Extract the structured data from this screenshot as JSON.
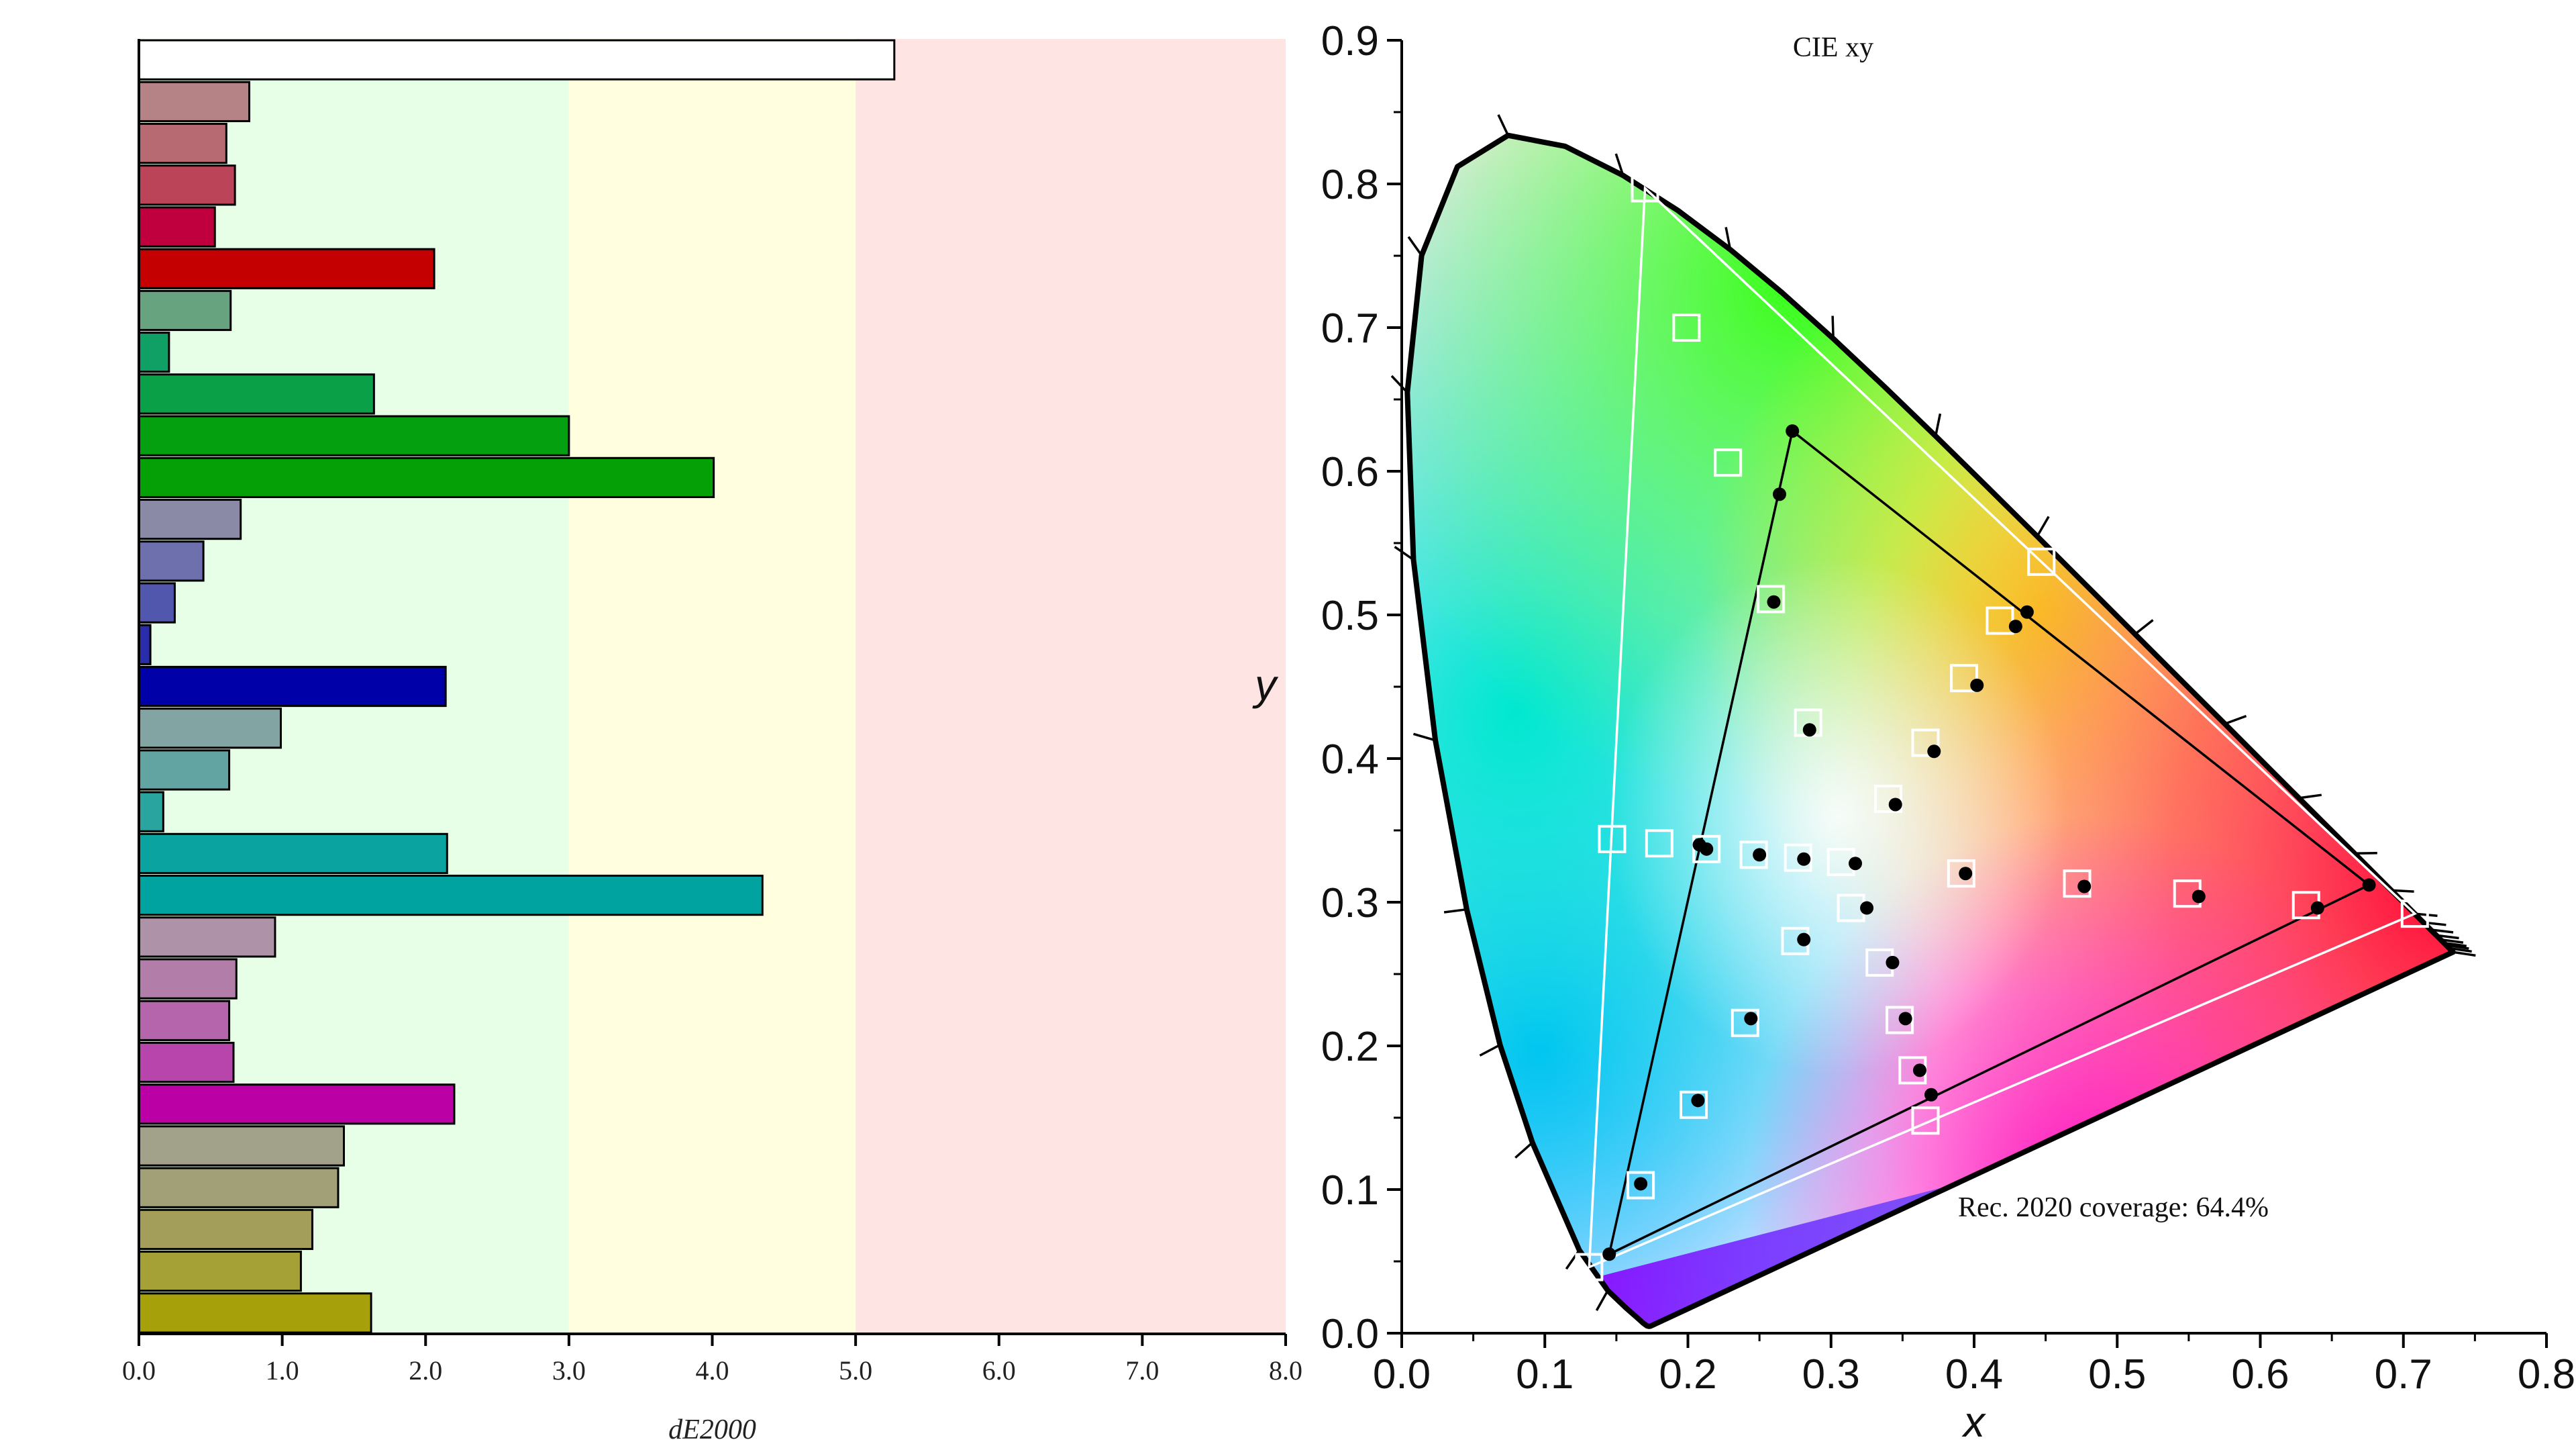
{
  "chart_data": [
    {
      "type": "bar",
      "orientation": "horizontal",
      "xlabel": "dE2000",
      "xlim": [
        0,
        8
      ],
      "xticks": [
        "0.0",
        "1.0",
        "2.0",
        "3.0",
        "4.0",
        "5.0",
        "6.0",
        "7.0",
        "8.0"
      ],
      "threshold_bands": [
        {
          "from": 0,
          "to": 3,
          "color": "#e6ffe6"
        },
        {
          "from": 3,
          "to": 5,
          "color": "#ffffe0"
        },
        {
          "from": 5,
          "to": 8,
          "color": "#ffe4e4"
        }
      ],
      "bars": [
        {
          "value": 5.27,
          "color": "#ffffff"
        },
        {
          "value": 0.77,
          "color": "#b58385"
        },
        {
          "value": 0.61,
          "color": "#b86a72"
        },
        {
          "value": 0.67,
          "color": "#bb4459"
        },
        {
          "value": 0.53,
          "color": "#c0003e"
        },
        {
          "value": 2.06,
          "color": "#c40000"
        },
        {
          "value": 0.64,
          "color": "#66a37e"
        },
        {
          "value": 0.21,
          "color": "#10a066"
        },
        {
          "value": 1.64,
          "color": "#0aa048"
        },
        {
          "value": 3.0,
          "color": "#05a010"
        },
        {
          "value": 4.01,
          "color": "#05a005"
        },
        {
          "value": 0.71,
          "color": "#8a8aa6"
        },
        {
          "value": 0.45,
          "color": "#6e70ad"
        },
        {
          "value": 0.25,
          "color": "#5057ad"
        },
        {
          "value": 0.08,
          "color": "#2a2dab"
        },
        {
          "value": 2.14,
          "color": "#0000a8"
        },
        {
          "value": 0.99,
          "color": "#82a4a3"
        },
        {
          "value": 0.63,
          "color": "#62a4a1"
        },
        {
          "value": 0.17,
          "color": "#29a49f"
        },
        {
          "value": 2.15,
          "color": "#0aa39f"
        },
        {
          "value": 4.35,
          "color": "#00a3a0"
        },
        {
          "value": 0.95,
          "color": "#ad92a8"
        },
        {
          "value": 0.68,
          "color": "#b27ea9"
        },
        {
          "value": 0.63,
          "color": "#b465ab"
        },
        {
          "value": 0.66,
          "color": "#b845ac"
        },
        {
          "value": 2.2,
          "color": "#bb00a5"
        },
        {
          "value": 1.43,
          "color": "#a2a18a"
        },
        {
          "value": 1.39,
          "color": "#a2a076"
        },
        {
          "value": 1.21,
          "color": "#a39f5a"
        },
        {
          "value": 1.13,
          "color": "#a6a136"
        },
        {
          "value": 1.62,
          "color": "#a6a00a"
        }
      ]
    },
    {
      "type": "scatter",
      "title": "CIE xy",
      "xlabel": "x",
      "ylabel": "y",
      "xlim": [
        0,
        0.8
      ],
      "ylim": [
        0,
        0.9
      ],
      "xticks": [
        "0.0",
        "0.1",
        "0.2",
        "0.3",
        "0.4",
        "0.5",
        "0.6",
        "0.7",
        "0.8"
      ],
      "yticks": [
        "0.0",
        "0.1",
        "0.2",
        "0.3",
        "0.4",
        "0.5",
        "0.6",
        "0.7",
        "0.8",
        "0.9"
      ],
      "annotation": "Rec. 2020 coverage: 64.4%",
      "spectral_locus": [
        [
          0.1741,
          0.005
        ],
        [
          0.1738,
          0.0049
        ],
        [
          0.1733,
          0.0048
        ],
        [
          0.1726,
          0.0048
        ],
        [
          0.1714,
          0.0051
        ],
        [
          0.1689,
          0.0069
        ],
        [
          0.1644,
          0.0109
        ],
        [
          0.1566,
          0.0177
        ],
        [
          0.144,
          0.0297
        ],
        [
          0.1241,
          0.0578
        ],
        [
          0.0913,
          0.1327
        ],
        [
          0.0687,
          0.2007
        ],
        [
          0.0454,
          0.295
        ],
        [
          0.0235,
          0.4127
        ],
        [
          0.0082,
          0.5384
        ],
        [
          0.0039,
          0.6548
        ],
        [
          0.0139,
          0.7502
        ],
        [
          0.0389,
          0.812
        ],
        [
          0.0743,
          0.8338
        ],
        [
          0.1142,
          0.8262
        ],
        [
          0.1547,
          0.8059
        ],
        [
          0.1929,
          0.7816
        ],
        [
          0.2296,
          0.7543
        ],
        [
          0.2658,
          0.7243
        ],
        [
          0.3016,
          0.6923
        ],
        [
          0.3373,
          0.6589
        ],
        [
          0.3731,
          0.6245
        ],
        [
          0.4087,
          0.5896
        ],
        [
          0.4441,
          0.5547
        ],
        [
          0.4788,
          0.5202
        ],
        [
          0.5125,
          0.4866
        ],
        [
          0.5448,
          0.4544
        ],
        [
          0.5752,
          0.4242
        ],
        [
          0.6029,
          0.3965
        ],
        [
          0.627,
          0.3725
        ],
        [
          0.6482,
          0.3514
        ],
        [
          0.6658,
          0.334
        ],
        [
          0.6801,
          0.3197
        ],
        [
          0.6915,
          0.3083
        ],
        [
          0.7006,
          0.2993
        ],
        [
          0.7079,
          0.292
        ],
        [
          0.714,
          0.2859
        ],
        [
          0.719,
          0.2809
        ],
        [
          0.723,
          0.277
        ],
        [
          0.726,
          0.274
        ],
        [
          0.7283,
          0.2717
        ],
        [
          0.73,
          0.27
        ],
        [
          0.732,
          0.268
        ],
        [
          0.7347,
          0.2653
        ]
      ],
      "locus_ticks": [
        [
          0.144,
          0.0297
        ],
        [
          0.1241,
          0.0578
        ],
        [
          0.0913,
          0.1327
        ],
        [
          0.0687,
          0.2007
        ],
        [
          0.0454,
          0.295
        ],
        [
          0.0235,
          0.4127
        ],
        [
          0.0082,
          0.5384
        ],
        [
          0.0039,
          0.6548
        ],
        [
          0.0139,
          0.7502
        ],
        [
          0.0743,
          0.8338
        ],
        [
          0.1547,
          0.8059
        ],
        [
          0.2296,
          0.7543
        ],
        [
          0.3016,
          0.6923
        ],
        [
          0.3731,
          0.6245
        ],
        [
          0.4441,
          0.5547
        ],
        [
          0.5125,
          0.4866
        ],
        [
          0.5752,
          0.4242
        ],
        [
          0.627,
          0.3725
        ],
        [
          0.6658,
          0.334
        ],
        [
          0.6915,
          0.3083
        ],
        [
          0.7079,
          0.292
        ],
        [
          0.714,
          0.2859
        ],
        [
          0.719,
          0.2809
        ],
        [
          0.723,
          0.277
        ],
        [
          0.726,
          0.274
        ],
        [
          0.7283,
          0.2717
        ],
        [
          0.73,
          0.27
        ],
        [
          0.732,
          0.268
        ],
        [
          0.7347,
          0.2653
        ]
      ],
      "reference_gamut": {
        "name": "Rec. 2020",
        "color": "#ffffff",
        "points": [
          [
            0.708,
            0.292
          ],
          [
            0.17,
            0.797
          ],
          [
            0.131,
            0.046
          ]
        ]
      },
      "measured_gamut": {
        "color": "#000000",
        "points": [
          [
            0.676,
            0.312
          ],
          [
            0.273,
            0.628
          ],
          [
            0.145,
            0.055
          ]
        ]
      },
      "targets": [
        [
          0.17,
          0.797
        ],
        [
          0.199,
          0.7
        ],
        [
          0.228,
          0.606
        ],
        [
          0.258,
          0.511
        ],
        [
          0.131,
          0.046
        ],
        [
          0.167,
          0.103
        ],
        [
          0.204,
          0.159
        ],
        [
          0.24,
          0.216
        ],
        [
          0.147,
          0.344
        ],
        [
          0.18,
          0.341
        ],
        [
          0.213,
          0.337
        ],
        [
          0.246,
          0.333
        ],
        [
          0.277,
          0.331
        ],
        [
          0.307,
          0.328
        ],
        [
          0.391,
          0.32
        ],
        [
          0.472,
          0.313
        ],
        [
          0.549,
          0.306
        ],
        [
          0.632,
          0.298
        ],
        [
          0.708,
          0.292
        ],
        [
          0.447,
          0.537
        ],
        [
          0.418,
          0.496
        ],
        [
          0.393,
          0.456
        ],
        [
          0.366,
          0.411
        ],
        [
          0.34,
          0.372
        ],
        [
          0.284,
          0.425
        ],
        [
          0.314,
          0.296
        ],
        [
          0.334,
          0.258
        ],
        [
          0.348,
          0.218
        ],
        [
          0.357,
          0.183
        ],
        [
          0.366,
          0.148
        ],
        [
          0.275,
          0.273
        ]
      ],
      "measured": [
        [
          0.264,
          0.584
        ],
        [
          0.26,
          0.509
        ],
        [
          0.285,
          0.42
        ],
        [
          0.167,
          0.104
        ],
        [
          0.207,
          0.162
        ],
        [
          0.244,
          0.219
        ],
        [
          0.208,
          0.34
        ],
        [
          0.213,
          0.337
        ],
        [
          0.25,
          0.333
        ],
        [
          0.281,
          0.33
        ],
        [
          0.317,
          0.327
        ],
        [
          0.394,
          0.32
        ],
        [
          0.477,
          0.311
        ],
        [
          0.557,
          0.304
        ],
        [
          0.64,
          0.296
        ],
        [
          0.437,
          0.502
        ],
        [
          0.429,
          0.492
        ],
        [
          0.402,
          0.451
        ],
        [
          0.372,
          0.405
        ],
        [
          0.345,
          0.368
        ],
        [
          0.325,
          0.296
        ],
        [
          0.343,
          0.258
        ],
        [
          0.352,
          0.219
        ],
        [
          0.362,
          0.183
        ],
        [
          0.37,
          0.166
        ],
        [
          0.281,
          0.274
        ]
      ]
    }
  ]
}
